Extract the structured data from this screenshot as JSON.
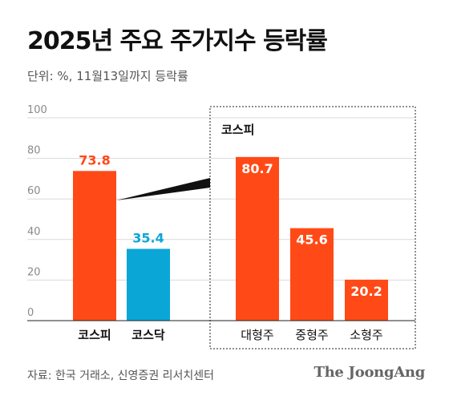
{
  "title": "2025년 주요 주가지수 등락률",
  "subtitle": "단위: %, 11월13일까지 등락률",
  "source": "자료: 한국 거래소, 신영증권 리서치센터",
  "brand": "The JoongAng",
  "colors": {
    "kospi": "#ff4a17",
    "kosdaq": "#0aa6d6",
    "grid": "#d9d9d9",
    "axis": "#888888"
  },
  "chart_data": [
    {
      "type": "bar",
      "categories": [
        "코스피",
        "코스닥"
      ],
      "values": [
        73.8,
        35.4
      ],
      "value_labels": [
        "73.8",
        "35.4"
      ],
      "ylim": [
        0,
        100
      ],
      "yticks": [
        0,
        20,
        40,
        60,
        80,
        100
      ],
      "grid": true
    },
    {
      "type": "bar",
      "title": "코스피",
      "categories": [
        "대형주",
        "중형주",
        "소형주"
      ],
      "values": [
        80.7,
        45.6,
        20.2
      ],
      "value_labels": [
        "80.7",
        "45.6",
        "20.2"
      ],
      "ylim": [
        0,
        100
      ],
      "grid": true
    }
  ]
}
